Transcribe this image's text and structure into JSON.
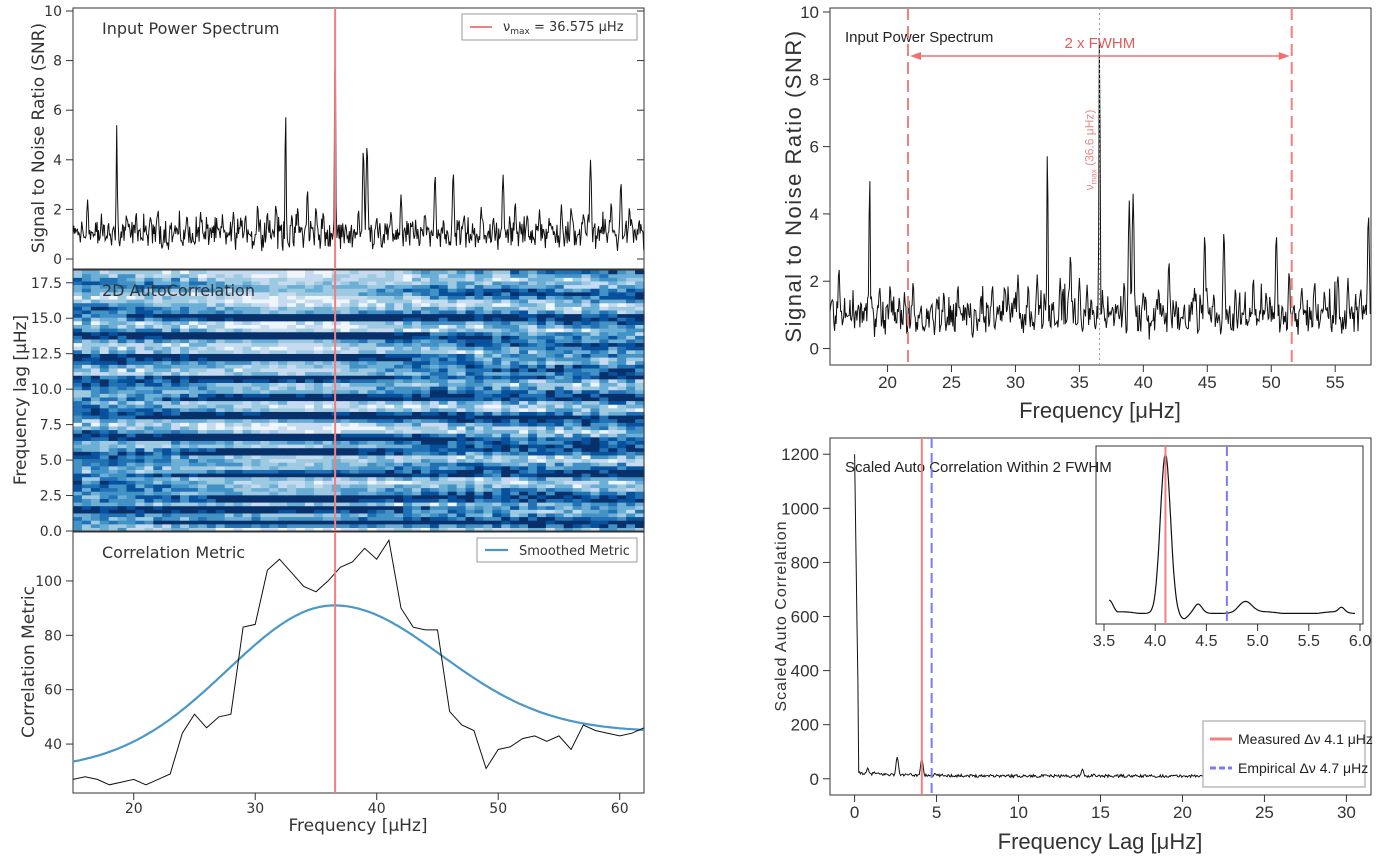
{
  "chart_data": [
    {
      "panel": "left-top",
      "type": "line",
      "title": "Input Power Spectrum",
      "xlabel": "",
      "ylabel": "Signal to Noise Ratio (SNR)",
      "xlim": [
        15,
        62
      ],
      "ylim": [
        0,
        10
      ],
      "yticks": [
        0,
        2,
        4,
        6,
        8,
        10
      ],
      "numax": 36.575,
      "legend": {
        "label_prefix": "ν",
        "label_sub": "max",
        "label_suffix": " =  36.575 μHz",
        "placement": "top-right"
      },
      "peaks": [
        [
          15.5,
          1.1
        ],
        [
          16.2,
          2.4
        ],
        [
          17.3,
          1.3
        ],
        [
          18.6,
          5.4
        ],
        [
          19.4,
          1.8
        ],
        [
          20.2,
          1.9
        ],
        [
          21.3,
          1.4
        ],
        [
          22.0,
          2.0
        ],
        [
          23.4,
          1.3
        ],
        [
          24.4,
          1.7
        ],
        [
          25.5,
          1.9
        ],
        [
          26.3,
          1.3
        ],
        [
          27.3,
          1.6
        ],
        [
          28.2,
          1.9
        ],
        [
          29.2,
          1.8
        ],
        [
          30.2,
          2.2
        ],
        [
          31.0,
          1.9
        ],
        [
          31.7,
          2.2
        ],
        [
          32.5,
          6.2
        ],
        [
          33.5,
          2.1
        ],
        [
          34.3,
          2.8
        ],
        [
          35.0,
          2.1
        ],
        [
          35.6,
          1.9
        ],
        [
          36.575,
          9.6
        ],
        [
          37.5,
          1.1
        ],
        [
          38.5,
          2.0
        ],
        [
          38.9,
          4.4
        ],
        [
          39.2,
          4.6
        ],
        [
          40.0,
          1.7
        ],
        [
          41.2,
          1.8
        ],
        [
          42.0,
          2.6
        ],
        [
          43.2,
          1.2
        ],
        [
          44.0,
          1.8
        ],
        [
          44.8,
          3.4
        ],
        [
          45.5,
          1.6
        ],
        [
          46.3,
          3.5
        ],
        [
          47.2,
          1.8
        ],
        [
          47.9,
          1.2
        ],
        [
          48.6,
          2.1
        ],
        [
          49.6,
          1.7
        ],
        [
          50.4,
          3.4
        ],
        [
          51.4,
          2.3
        ],
        [
          52.4,
          1.8
        ],
        [
          53.4,
          2.0
        ],
        [
          54.2,
          1.5
        ],
        [
          55.2,
          2.2
        ],
        [
          56.0,
          2.1
        ],
        [
          57.0,
          1.8
        ],
        [
          57.6,
          4.0
        ],
        [
          58.5,
          1.3
        ],
        [
          59.3,
          2.3
        ],
        [
          60.1,
          3.1
        ],
        [
          60.8,
          2.1
        ],
        [
          61.6,
          1.6
        ]
      ]
    },
    {
      "panel": "left-middle",
      "type": "heatmap",
      "title": "2D AutoCorrelation",
      "ylabel": "Frequency lag [μHz]",
      "xlim": [
        15,
        62
      ],
      "ylim": [
        0,
        18.4
      ],
      "yticks": [
        0.0,
        2.5,
        5.0,
        7.5,
        10.0,
        12.5,
        15.0,
        17.5
      ],
      "colormap": "blues",
      "numax": 36.575
    },
    {
      "panel": "left-bottom",
      "type": "line",
      "title": "Correlation Metric",
      "xlabel": "Frequency [μHz]",
      "ylabel": "Correlation Metric",
      "xlim": [
        15,
        62
      ],
      "ylim": [
        22,
        118
      ],
      "xticks": [
        20,
        30,
        40,
        50,
        60
      ],
      "yticks": [
        40,
        60,
        80,
        100
      ],
      "legend": {
        "label": "Smoothed Metric",
        "placement": "top-right"
      },
      "numax": 36.575,
      "metric": {
        "x": [
          15,
          16,
          17,
          18,
          19,
          20,
          21,
          22,
          23,
          24,
          25,
          26,
          27,
          28,
          29,
          30,
          31,
          32,
          33,
          34,
          35,
          36,
          37,
          38,
          39,
          40,
          41,
          42,
          43,
          44,
          45,
          46,
          47,
          48,
          49,
          50,
          51,
          52,
          53,
          54,
          55,
          56,
          57,
          58,
          59,
          60,
          61,
          62
        ],
        "y": [
          27,
          28,
          27,
          25,
          26,
          27,
          25,
          27,
          29,
          44,
          51,
          46,
          50,
          51,
          83,
          84,
          104,
          108,
          103,
          98,
          96,
          100,
          105,
          107,
          112,
          108,
          115,
          90,
          83,
          82,
          82,
          52,
          47,
          45,
          31,
          38,
          39,
          42,
          43,
          41,
          43,
          38,
          47,
          45,
          44,
          43,
          44,
          46
        ]
      },
      "smoothed": {
        "amplitude": 60.5,
        "center": 36.5,
        "sigma": 8.8,
        "offset": 30.5,
        "offset_right": 44.5
      }
    },
    {
      "panel": "right-top",
      "type": "line",
      "title": "Input Power Spectrum",
      "xlabel": "Frequency [μHz]",
      "ylabel": "Signal to Noise Ratio (SNR)",
      "xlim": [
        15.5,
        57.8
      ],
      "ylim": [
        -0.4,
        10
      ],
      "xticks": [
        20,
        25,
        30,
        35,
        40,
        45,
        50,
        55
      ],
      "yticks": [
        0,
        2,
        4,
        6,
        8,
        10
      ],
      "fwhm_left": 21.6,
      "fwhm_right": 51.6,
      "numax": 36.575,
      "annotation_fwhm": "2 x FWHM",
      "annotation_numax_prefix": "ν",
      "annotation_numax_sub": "max",
      "annotation_numax_suffix": " (36.6 μHz)"
    },
    {
      "panel": "right-bottom",
      "type": "line",
      "title": "Scaled Auto Correlation Within 2 FWHM",
      "xlabel": "Frequency Lag [μHz]",
      "ylabel": "Scaled Auto Correlation",
      "xlim": [
        -1.5,
        31.5
      ],
      "ylim": [
        -60,
        1260
      ],
      "xticks": [
        0,
        5,
        10,
        15,
        20,
        25,
        30
      ],
      "yticks": [
        0,
        200,
        400,
        600,
        800,
        1000,
        1200
      ],
      "measured_dnu": 4.1,
      "empirical_dnu": 4.7,
      "legend": [
        {
          "prefix": "Measured Δν ",
          "value": "4.1 μHz",
          "color": "#f08080",
          "style": "solid"
        },
        {
          "prefix": "Empirical Δν ",
          "value": "4.7 μHz",
          "color": "#7b7bf5",
          "style": "dashed"
        }
      ],
      "legend_placement": "bottom-right",
      "inset": {
        "xlim": [
          3.5,
          6.0
        ],
        "ylim": [
          560,
          1230
        ],
        "xticks": [
          3.5,
          4.0,
          4.5,
          5.0,
          5.5,
          6.0
        ],
        "peak_x": 4.1,
        "peak_y": 1200
      }
    }
  ],
  "colors": {
    "line": "#111111",
    "numax": "#f08080",
    "smooth": "#4a98c9",
    "empirical": "#7b7bf5"
  }
}
